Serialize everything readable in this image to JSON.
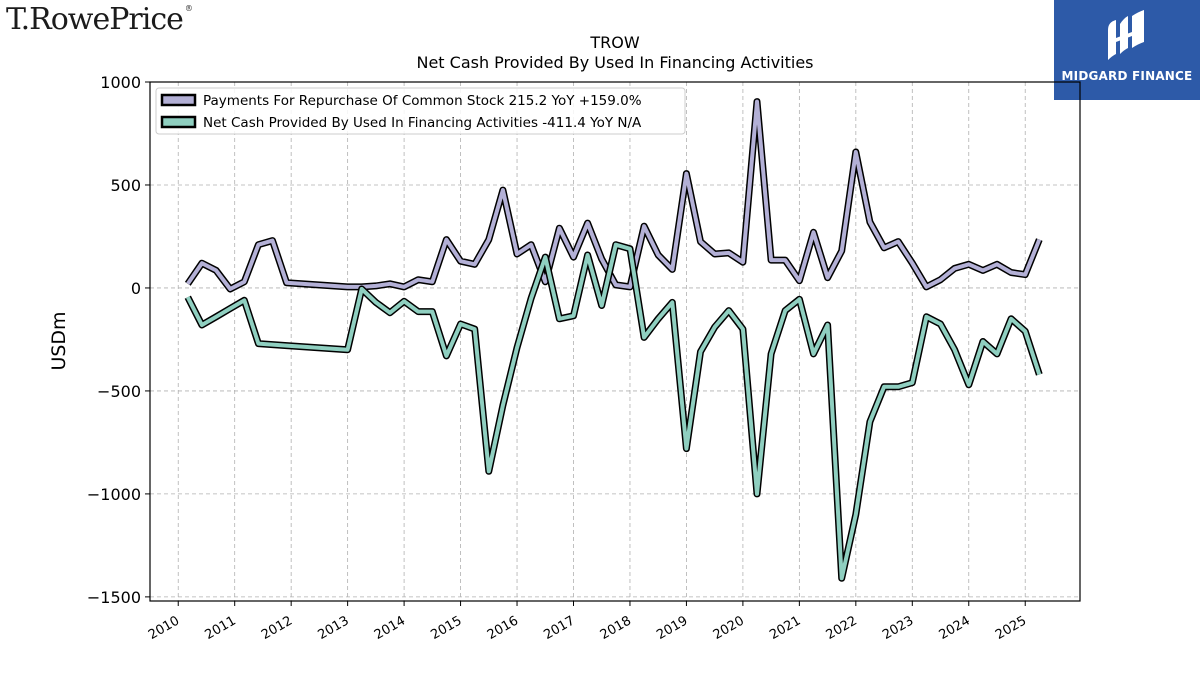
{
  "header": {
    "brand_left": "T.RowePrice",
    "brand_left_mark": "®",
    "brand_right": "MIDGARD FINANCE"
  },
  "chart_data": {
    "type": "line",
    "title": "TROW",
    "subtitle": "Net Cash Provided By Used In Financing Activities",
    "xlabel": "",
    "ylabel": "USDm",
    "xlim": [
      2009.5,
      2025.97
    ],
    "ylim": [
      -1520,
      1000
    ],
    "yticks": [
      1000,
      500,
      0,
      -500,
      -1000,
      -1500
    ],
    "ytick_labels": [
      "1000",
      "500",
      "0",
      "−500",
      "−1000",
      "−1500"
    ],
    "xticks": [
      2010,
      2011,
      2012,
      2013,
      2014,
      2015,
      2016,
      2017,
      2018,
      2019,
      2020,
      2021,
      2022,
      2023,
      2024,
      2025
    ],
    "xtick_labels": [
      "2010",
      "2011",
      "2012",
      "2013",
      "2014",
      "2015",
      "2016",
      "2017",
      "2018",
      "2019",
      "2020",
      "2021",
      "2022",
      "2023",
      "2024",
      "2025"
    ],
    "grid": true,
    "legend_position": "top-left",
    "series": [
      {
        "name": "Payments For Repurchase Of Common Stock",
        "legend_label": "Payments For Repurchase Of Common Stock  215.2 YoY +159.0%",
        "color": "#b3b0d6",
        "points": [
          [
            2010.17,
            20
          ],
          [
            2010.42,
            120
          ],
          [
            2010.67,
            85
          ],
          [
            2010.92,
            -5
          ],
          [
            2011.17,
            30
          ],
          [
            2011.42,
            210
          ],
          [
            2011.67,
            230
          ],
          [
            2011.92,
            25
          ],
          [
            2013.0,
            5
          ],
          [
            2013.25,
            5
          ],
          [
            2013.5,
            10
          ],
          [
            2013.75,
            20
          ],
          [
            2014.0,
            5
          ],
          [
            2014.25,
            40
          ],
          [
            2014.5,
            30
          ],
          [
            2014.75,
            235
          ],
          [
            2015.0,
            130
          ],
          [
            2015.25,
            115
          ],
          [
            2015.5,
            235
          ],
          [
            2015.75,
            475
          ],
          [
            2016.0,
            165
          ],
          [
            2016.25,
            210
          ],
          [
            2016.5,
            30
          ],
          [
            2016.75,
            290
          ],
          [
            2017.0,
            150
          ],
          [
            2017.25,
            315
          ],
          [
            2017.5,
            140
          ],
          [
            2017.75,
            15
          ],
          [
            2018.0,
            5
          ],
          [
            2018.25,
            300
          ],
          [
            2018.5,
            160
          ],
          [
            2018.75,
            90
          ],
          [
            2019.0,
            555
          ],
          [
            2019.25,
            225
          ],
          [
            2019.5,
            165
          ],
          [
            2019.75,
            170
          ],
          [
            2020.0,
            125
          ],
          [
            2020.25,
            905
          ],
          [
            2020.5,
            135
          ],
          [
            2020.75,
            135
          ],
          [
            2021.0,
            35
          ],
          [
            2021.25,
            270
          ],
          [
            2021.5,
            50
          ],
          [
            2021.75,
            180
          ],
          [
            2022.0,
            660
          ],
          [
            2022.25,
            320
          ],
          [
            2022.5,
            195
          ],
          [
            2022.75,
            225
          ],
          [
            2023.0,
            120
          ],
          [
            2023.25,
            5
          ],
          [
            2023.5,
            40
          ],
          [
            2023.75,
            95
          ],
          [
            2024.0,
            115
          ],
          [
            2024.25,
            85
          ],
          [
            2024.5,
            115
          ],
          [
            2024.75,
            75
          ],
          [
            2025.0,
            65
          ],
          [
            2025.25,
            235
          ]
        ]
      },
      {
        "name": "Net Cash Provided By Used In Financing Activities",
        "legend_label": "Net Cash Provided By Used In Financing Activities  -411.4 YoY N/A",
        "color": "#8fcfc0",
        "points": [
          [
            2010.17,
            -45
          ],
          [
            2010.42,
            -180
          ],
          [
            2010.67,
            -140
          ],
          [
            2010.92,
            -100
          ],
          [
            2011.17,
            -60
          ],
          [
            2011.42,
            -270
          ],
          [
            2011.67,
            -275
          ],
          [
            2011.92,
            -280
          ],
          [
            2013.0,
            -300
          ],
          [
            2013.25,
            -5
          ],
          [
            2013.5,
            -70
          ],
          [
            2013.75,
            -120
          ],
          [
            2014.0,
            -65
          ],
          [
            2014.25,
            -115
          ],
          [
            2014.5,
            -115
          ],
          [
            2014.75,
            -330
          ],
          [
            2015.0,
            -175
          ],
          [
            2015.25,
            -200
          ],
          [
            2015.5,
            -890
          ],
          [
            2015.75,
            -570
          ],
          [
            2016.0,
            -290
          ],
          [
            2016.25,
            -50
          ],
          [
            2016.5,
            150
          ],
          [
            2016.75,
            -150
          ],
          [
            2017.0,
            -135
          ],
          [
            2017.25,
            160
          ],
          [
            2017.5,
            -85
          ],
          [
            2017.75,
            210
          ],
          [
            2018.0,
            190
          ],
          [
            2018.25,
            -240
          ],
          [
            2018.5,
            -150
          ],
          [
            2018.75,
            -70
          ],
          [
            2019.0,
            -780
          ],
          [
            2019.25,
            -310
          ],
          [
            2019.5,
            -190
          ],
          [
            2019.75,
            -110
          ],
          [
            2020.0,
            -200
          ],
          [
            2020.25,
            -1000
          ],
          [
            2020.5,
            -320
          ],
          [
            2020.75,
            -110
          ],
          [
            2021.0,
            -55
          ],
          [
            2021.25,
            -320
          ],
          [
            2021.5,
            -180
          ],
          [
            2021.75,
            -1410
          ],
          [
            2022.0,
            -1100
          ],
          [
            2022.25,
            -650
          ],
          [
            2022.5,
            -480
          ],
          [
            2022.75,
            -480
          ],
          [
            2023.0,
            -460
          ],
          [
            2023.25,
            -140
          ],
          [
            2023.5,
            -175
          ],
          [
            2023.75,
            -300
          ],
          [
            2024.0,
            -470
          ],
          [
            2024.25,
            -260
          ],
          [
            2024.5,
            -320
          ],
          [
            2024.75,
            -150
          ],
          [
            2025.0,
            -210
          ],
          [
            2025.25,
            -420
          ]
        ]
      }
    ]
  }
}
